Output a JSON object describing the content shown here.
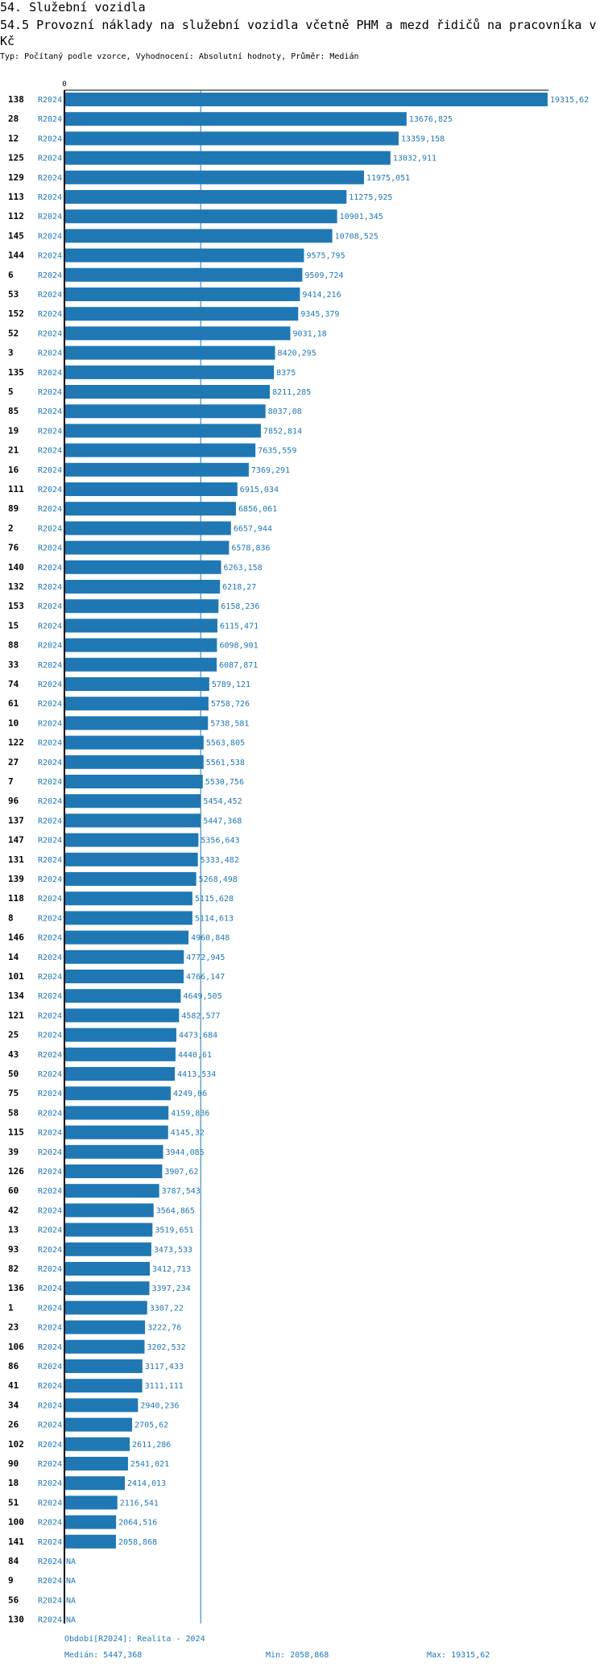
{
  "header": {
    "section": "54. Služební vozidla",
    "title": "54.5 Provozní náklady na služební vozidla včetně PHM a mezd řidičů na pracovníka v Kč",
    "subtitle": "Typ: Počítaný podle vzorce, Vyhodnocení: Absolutní hodnoty, Průměr: Medián"
  },
  "colors": {
    "bar": "#1f78b4",
    "text_blue": "#1f78b4",
    "label": "#000000"
  },
  "chart_data": {
    "type": "bar",
    "orientation": "horizontal",
    "x_tick_labels": [
      "0"
    ],
    "xlim": [
      0,
      19315.62
    ],
    "median_line": 5447.368,
    "series_label": "R2024",
    "rows": [
      {
        "id": "138",
        "value": 19315.62,
        "label": "19315,62"
      },
      {
        "id": "28",
        "value": 13676.825,
        "label": "13676,825"
      },
      {
        "id": "12",
        "value": 13359.158,
        "label": "13359,158"
      },
      {
        "id": "125",
        "value": 13032.911,
        "label": "13032,911"
      },
      {
        "id": "129",
        "value": 11975.051,
        "label": "11975,051"
      },
      {
        "id": "113",
        "value": 11275.925,
        "label": "11275,925"
      },
      {
        "id": "112",
        "value": 10901.345,
        "label": "10901,345"
      },
      {
        "id": "145",
        "value": 10708.525,
        "label": "10708,525"
      },
      {
        "id": "144",
        "value": 9575.795,
        "label": "9575,795"
      },
      {
        "id": "6",
        "value": 9509.724,
        "label": "9509,724"
      },
      {
        "id": "53",
        "value": 9414.216,
        "label": "9414,216"
      },
      {
        "id": "152",
        "value": 9345.379,
        "label": "9345,379"
      },
      {
        "id": "52",
        "value": 9031.18,
        "label": "9031,18"
      },
      {
        "id": "3",
        "value": 8420.295,
        "label": "8420,295"
      },
      {
        "id": "135",
        "value": 8375,
        "label": "8375"
      },
      {
        "id": "5",
        "value": 8211.285,
        "label": "8211,285"
      },
      {
        "id": "85",
        "value": 8037.08,
        "label": "8037,08"
      },
      {
        "id": "19",
        "value": 7852.814,
        "label": "7852,814"
      },
      {
        "id": "21",
        "value": 7635.559,
        "label": "7635,559"
      },
      {
        "id": "16",
        "value": 7369.291,
        "label": "7369,291"
      },
      {
        "id": "111",
        "value": 6915.034,
        "label": "6915,034"
      },
      {
        "id": "89",
        "value": 6856.061,
        "label": "6856,061"
      },
      {
        "id": "2",
        "value": 6657.944,
        "label": "6657,944"
      },
      {
        "id": "76",
        "value": 6578.836,
        "label": "6578,836"
      },
      {
        "id": "140",
        "value": 6263.158,
        "label": "6263,158"
      },
      {
        "id": "132",
        "value": 6218.27,
        "label": "6218,27"
      },
      {
        "id": "153",
        "value": 6158.236,
        "label": "6158,236"
      },
      {
        "id": "15",
        "value": 6115.471,
        "label": "6115,471"
      },
      {
        "id": "88",
        "value": 6098.901,
        "label": "6098,901"
      },
      {
        "id": "33",
        "value": 6087.871,
        "label": "6087,871"
      },
      {
        "id": "74",
        "value": 5789.121,
        "label": "5789,121"
      },
      {
        "id": "61",
        "value": 5758.726,
        "label": "5758,726"
      },
      {
        "id": "10",
        "value": 5738.581,
        "label": "5738,581"
      },
      {
        "id": "122",
        "value": 5563.805,
        "label": "5563,805"
      },
      {
        "id": "27",
        "value": 5561.538,
        "label": "5561,538"
      },
      {
        "id": "7",
        "value": 5530.756,
        "label": "5530,756"
      },
      {
        "id": "96",
        "value": 5454.452,
        "label": "5454,452"
      },
      {
        "id": "137",
        "value": 5447.368,
        "label": "5447,368"
      },
      {
        "id": "147",
        "value": 5356.643,
        "label": "5356,643"
      },
      {
        "id": "131",
        "value": 5333.482,
        "label": "5333,482"
      },
      {
        "id": "139",
        "value": 5268.498,
        "label": "5268,498"
      },
      {
        "id": "118",
        "value": 5115.628,
        "label": "5115,628"
      },
      {
        "id": "8",
        "value": 5114.613,
        "label": "5114,613"
      },
      {
        "id": "146",
        "value": 4960.848,
        "label": "4960,848"
      },
      {
        "id": "14",
        "value": 4772.945,
        "label": "4772,945"
      },
      {
        "id": "101",
        "value": 4766.147,
        "label": "4766,147"
      },
      {
        "id": "134",
        "value": 4649.505,
        "label": "4649,505"
      },
      {
        "id": "121",
        "value": 4582.577,
        "label": "4582,577"
      },
      {
        "id": "25",
        "value": 4473.684,
        "label": "4473,684"
      },
      {
        "id": "43",
        "value": 4440.61,
        "label": "4440,61"
      },
      {
        "id": "50",
        "value": 4413.534,
        "label": "4413,534"
      },
      {
        "id": "75",
        "value": 4249.06,
        "label": "4249,06"
      },
      {
        "id": "58",
        "value": 4159.836,
        "label": "4159,836"
      },
      {
        "id": "115",
        "value": 4145.32,
        "label": "4145,32"
      },
      {
        "id": "39",
        "value": 3944.085,
        "label": "3944,085"
      },
      {
        "id": "126",
        "value": 3907.62,
        "label": "3907,62"
      },
      {
        "id": "60",
        "value": 3787.543,
        "label": "3787,543"
      },
      {
        "id": "42",
        "value": 3564.865,
        "label": "3564,865"
      },
      {
        "id": "13",
        "value": 3519.651,
        "label": "3519,651"
      },
      {
        "id": "93",
        "value": 3473.533,
        "label": "3473,533"
      },
      {
        "id": "82",
        "value": 3412.713,
        "label": "3412,713"
      },
      {
        "id": "136",
        "value": 3397.234,
        "label": "3397,234"
      },
      {
        "id": "1",
        "value": 3307.22,
        "label": "3307,22"
      },
      {
        "id": "23",
        "value": 3222.76,
        "label": "3222,76"
      },
      {
        "id": "106",
        "value": 3202.532,
        "label": "3202,532"
      },
      {
        "id": "86",
        "value": 3117.433,
        "label": "3117,433"
      },
      {
        "id": "41",
        "value": 3111.111,
        "label": "3111,111"
      },
      {
        "id": "34",
        "value": 2940.236,
        "label": "2940,236"
      },
      {
        "id": "26",
        "value": 2705.62,
        "label": "2705,62"
      },
      {
        "id": "102",
        "value": 2611.286,
        "label": "2611,286"
      },
      {
        "id": "90",
        "value": 2541.021,
        "label": "2541,021"
      },
      {
        "id": "18",
        "value": 2414.013,
        "label": "2414,013"
      },
      {
        "id": "51",
        "value": 2116.541,
        "label": "2116,541"
      },
      {
        "id": "100",
        "value": 2064.516,
        "label": "2064,516"
      },
      {
        "id": "141",
        "value": 2058.868,
        "label": "2058,868"
      },
      {
        "id": "84",
        "value": null,
        "label": "NA"
      },
      {
        "id": "9",
        "value": null,
        "label": "NA"
      },
      {
        "id": "56",
        "value": null,
        "label": "NA"
      },
      {
        "id": "130",
        "value": null,
        "label": "NA"
      }
    ]
  },
  "footer": {
    "period": "Období[R2024]: Realita - 2024",
    "median": "Medián: 5447,368",
    "min": "Min: 2058,868",
    "max": "Max: 19315,62"
  }
}
